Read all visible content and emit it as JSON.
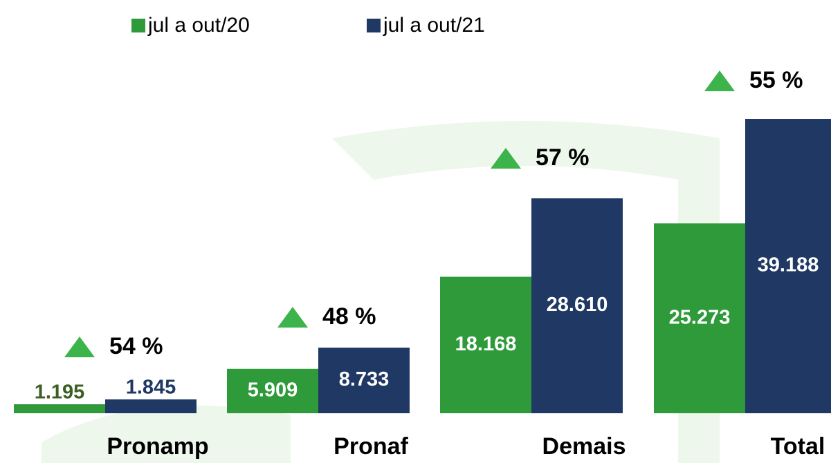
{
  "chart_data": {
    "type": "bar",
    "categories": [
      "Pronamp",
      "Pronaf",
      "Demais",
      "Total"
    ],
    "series": [
      {
        "name": "jul a out/20",
        "color": "#2e9a3a",
        "values": [
          1195,
          5909,
          18168,
          25273
        ],
        "value_labels": [
          "1.195",
          "5.909",
          "18.168",
          "25.273"
        ]
      },
      {
        "name": "jul a out/21",
        "color": "#1f3864",
        "values": [
          1845,
          8733,
          28610,
          39188
        ],
        "value_labels": [
          "1.845",
          "8.733",
          "28.610",
          "39.188"
        ]
      }
    ],
    "annotations": [
      "54 %",
      "48 %",
      "57 %",
      "55 %"
    ],
    "annotation_color": "#3cb44b"
  }
}
